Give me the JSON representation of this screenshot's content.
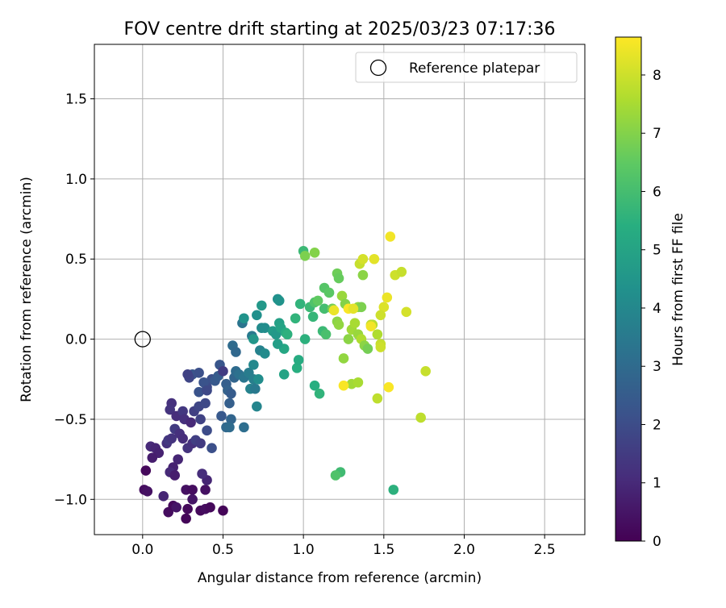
{
  "chart_data": {
    "type": "scatter",
    "title": "FOV centre drift starting at 2025/03/23 07:17:36",
    "xlabel": "Angular distance from reference (arcmin)",
    "ylabel": "Rotation from reference (arcmin)",
    "xlim": [
      -0.3,
      2.75
    ],
    "ylim": [
      -1.22,
      1.84
    ],
    "x_ticks": [
      0.0,
      0.5,
      1.0,
      1.5,
      2.0,
      2.5
    ],
    "x_tick_labels": [
      "0.0",
      "0.5",
      "1.0",
      "1.5",
      "2.0",
      "2.5"
    ],
    "y_ticks": [
      -1.0,
      -0.5,
      0.0,
      0.5,
      1.0,
      1.5
    ],
    "y_tick_labels": [
      "−1.0",
      "−0.5",
      "0.0",
      "0.5",
      "1.0",
      "1.5"
    ],
    "grid": true,
    "legend": {
      "position": "top-right",
      "entries": [
        {
          "label": "Reference platepar",
          "marker": "open-circle"
        }
      ]
    },
    "reference_point": {
      "x": 0.0,
      "y": 0.0
    },
    "colorbar": {
      "label": "Hours from first FF file",
      "colormap": "viridis",
      "range": [
        0,
        8.65
      ],
      "ticks": [
        0,
        1,
        2,
        3,
        4,
        5,
        6,
        7,
        8
      ],
      "tick_labels": [
        "0",
        "1",
        "2",
        "3",
        "4",
        "5",
        "6",
        "7",
        "8"
      ]
    },
    "series": [
      {
        "points": [
          [
            0.02,
            -0.82,
            0.2
          ],
          [
            0.01,
            -0.94,
            0.3
          ],
          [
            0.03,
            -0.95,
            0.4
          ],
          [
            0.16,
            -1.08,
            0.3
          ],
          [
            0.19,
            -1.04,
            0.2
          ],
          [
            0.21,
            -1.05,
            0.5
          ],
          [
            0.27,
            -0.94,
            0.4
          ],
          [
            0.31,
            -0.94,
            0.3
          ],
          [
            0.28,
            -1.06,
            0.2
          ],
          [
            0.27,
            -1.12,
            0.1
          ],
          [
            0.31,
            -1.0,
            0.5
          ],
          [
            0.36,
            -1.07,
            0.2
          ],
          [
            0.39,
            -1.06,
            0.3
          ],
          [
            0.42,
            -1.05,
            0.2
          ],
          [
            0.5,
            -1.07,
            0.1
          ],
          [
            0.39,
            -0.94,
            0.4
          ],
          [
            0.4,
            -0.88,
            0.9
          ],
          [
            0.37,
            -0.84,
            1.1
          ],
          [
            0.22,
            -0.75,
            0.9
          ],
          [
            0.19,
            -0.8,
            0.8
          ],
          [
            0.17,
            -0.83,
            1.0
          ],
          [
            0.2,
            -0.85,
            0.7
          ],
          [
            0.15,
            -0.65,
            1.2
          ],
          [
            0.05,
            -0.67,
            1.0
          ],
          [
            0.08,
            -0.68,
            0.9
          ],
          [
            0.1,
            -0.71,
            0.8
          ],
          [
            0.06,
            -0.74,
            0.7
          ],
          [
            0.13,
            -0.98,
            0.9
          ],
          [
            0.16,
            -0.63,
            1.4
          ],
          [
            0.18,
            -0.62,
            1.3
          ],
          [
            0.2,
            -0.56,
            1.5
          ],
          [
            0.23,
            -0.59,
            1.2
          ],
          [
            0.25,
            -0.62,
            1.1
          ],
          [
            0.28,
            -0.68,
            1.3
          ],
          [
            0.31,
            -0.65,
            1.2
          ],
          [
            0.33,
            -0.63,
            1.6
          ],
          [
            0.36,
            -0.65,
            1.5
          ],
          [
            0.4,
            -0.57,
            2.0
          ],
          [
            0.43,
            -0.68,
            2.1
          ],
          [
            0.18,
            -0.4,
            1.2
          ],
          [
            0.17,
            -0.44,
            1.3
          ],
          [
            0.21,
            -0.48,
            1.1
          ],
          [
            0.25,
            -0.45,
            1.4
          ],
          [
            0.26,
            -0.5,
            1.2
          ],
          [
            0.3,
            -0.52,
            1.0
          ],
          [
            0.32,
            -0.45,
            1.6
          ],
          [
            0.35,
            -0.42,
            1.8
          ],
          [
            0.36,
            -0.5,
            1.7
          ],
          [
            0.39,
            -0.4,
            1.9
          ],
          [
            0.43,
            -0.25,
            2.1
          ],
          [
            0.4,
            -0.3,
            2.0
          ],
          [
            0.35,
            -0.33,
            2.2
          ],
          [
            0.31,
            -0.22,
            2.3
          ],
          [
            0.29,
            -0.24,
            1.8
          ],
          [
            0.28,
            -0.22,
            1.7
          ],
          [
            0.35,
            -0.21,
            2.1
          ],
          [
            0.38,
            -0.27,
            2.2
          ],
          [
            0.4,
            -0.32,
            1.9
          ],
          [
            0.45,
            -0.26,
            2.4
          ],
          [
            0.47,
            -0.23,
            2.5
          ],
          [
            0.48,
            -0.16,
            2.3
          ],
          [
            0.5,
            -0.2,
            1.5
          ],
          [
            0.52,
            -0.28,
            2.6
          ],
          [
            0.53,
            -0.32,
            2.7
          ],
          [
            0.55,
            -0.34,
            2.5
          ],
          [
            0.54,
            -0.4,
            2.6
          ],
          [
            0.55,
            -0.5,
            2.8
          ],
          [
            0.49,
            -0.48,
            2.4
          ],
          [
            0.52,
            -0.55,
            2.9
          ],
          [
            0.54,
            -0.55,
            3.0
          ],
          [
            0.63,
            -0.55,
            3.1
          ],
          [
            0.57,
            -0.24,
            2.8
          ],
          [
            0.58,
            -0.2,
            3.0
          ],
          [
            0.6,
            -0.22,
            3.2
          ],
          [
            0.63,
            -0.24,
            3.4
          ],
          [
            0.66,
            -0.21,
            3.6
          ],
          [
            0.69,
            -0.25,
            3.7
          ],
          [
            0.67,
            -0.31,
            3.8
          ],
          [
            0.7,
            -0.31,
            3.5
          ],
          [
            0.71,
            -0.42,
            3.9
          ],
          [
            0.69,
            -0.16,
            4.0
          ],
          [
            0.73,
            -0.07,
            3.8
          ],
          [
            0.76,
            -0.09,
            4.1
          ],
          [
            0.72,
            -0.25,
            4.2
          ],
          [
            0.56,
            -0.04,
            3.0
          ],
          [
            0.58,
            -0.08,
            2.9
          ],
          [
            0.62,
            0.1,
            3.3
          ],
          [
            0.63,
            0.13,
            4.4
          ],
          [
            0.68,
            0.02,
            3.5
          ],
          [
            0.69,
            0.0,
            4.5
          ],
          [
            0.74,
            0.07,
            4.1
          ],
          [
            0.76,
            0.07,
            4.2
          ],
          [
            0.71,
            0.15,
            4.3
          ],
          [
            0.74,
            0.21,
            4.6
          ],
          [
            0.84,
            0.25,
            4.3
          ],
          [
            0.85,
            0.24,
            4.4
          ],
          [
            0.81,
            0.05,
            4.7
          ],
          [
            0.83,
            0.03,
            4.6
          ],
          [
            0.85,
            0.1,
            4.9
          ],
          [
            0.86,
            0.07,
            5.0
          ],
          [
            0.88,
            -0.06,
            5.1
          ],
          [
            0.89,
            0.04,
            5.3
          ],
          [
            0.84,
            -0.03,
            4.8
          ],
          [
            0.88,
            -0.22,
            5.0
          ],
          [
            0.9,
            0.03,
            5.5
          ],
          [
            0.95,
            0.13,
            5.6
          ],
          [
            0.96,
            -0.18,
            5.4
          ],
          [
            0.97,
            -0.13,
            5.3
          ],
          [
            0.98,
            0.22,
            5.6
          ],
          [
            1.01,
            0.0,
            5.5
          ],
          [
            1.04,
            0.2,
            5.8
          ],
          [
            1.06,
            0.14,
            5.7
          ],
          [
            1.07,
            -0.29,
            5.4
          ],
          [
            1.1,
            -0.34,
            5.6
          ],
          [
            1.12,
            0.05,
            5.8
          ],
          [
            1.13,
            0.19,
            6.0
          ],
          [
            1.14,
            0.03,
            6.1
          ],
          [
            1.07,
            0.23,
            6.2
          ],
          [
            1.0,
            0.55,
            5.8
          ],
          [
            1.09,
            0.24,
            6.5
          ],
          [
            1.13,
            0.32,
            6.3
          ],
          [
            1.16,
            0.29,
            6.4
          ],
          [
            1.21,
            0.41,
            6.7
          ],
          [
            1.22,
            0.38,
            6.6
          ],
          [
            1.01,
            0.52,
            6.9
          ],
          [
            1.07,
            0.54,
            7.0
          ],
          [
            1.18,
            0.19,
            6.8
          ],
          [
            1.21,
            0.11,
            7.1
          ],
          [
            1.22,
            0.09,
            7.2
          ],
          [
            1.24,
            0.27,
            7.3
          ],
          [
            1.26,
            0.22,
            7.0
          ],
          [
            1.28,
            0.0,
            7.1
          ],
          [
            1.3,
            0.06,
            7.4
          ],
          [
            1.32,
            0.1,
            7.5
          ],
          [
            1.34,
            0.2,
            7.2
          ],
          [
            1.36,
            0.2,
            6.9
          ],
          [
            1.34,
            0.03,
            7.3
          ],
          [
            1.36,
            0.0,
            7.6
          ],
          [
            1.38,
            -0.04,
            7.1
          ],
          [
            1.4,
            -0.06,
            6.8
          ],
          [
            1.42,
            0.09,
            7.8
          ],
          [
            1.43,
            0.09,
            7.7
          ],
          [
            1.46,
            0.03,
            7.6
          ],
          [
            1.48,
            -0.03,
            7.9
          ],
          [
            1.48,
            -0.05,
            8.0
          ],
          [
            1.3,
            -0.28,
            7.4
          ],
          [
            1.34,
            -0.27,
            7.5
          ],
          [
            1.25,
            -0.12,
            7.2
          ],
          [
            1.46,
            -0.37,
            7.8
          ],
          [
            1.37,
            0.4,
            7.1
          ],
          [
            1.35,
            0.47,
            7.9
          ],
          [
            1.37,
            0.5,
            8.1
          ],
          [
            1.44,
            0.5,
            8.3
          ],
          [
            1.5,
            0.2,
            8.2
          ],
          [
            1.52,
            0.26,
            8.4
          ],
          [
            1.48,
            0.15,
            8.0
          ],
          [
            1.54,
            0.64,
            8.5
          ],
          [
            1.57,
            0.4,
            8.0
          ],
          [
            1.61,
            0.42,
            7.9
          ],
          [
            1.64,
            0.17,
            8.1
          ],
          [
            1.76,
            -0.2,
            7.9
          ],
          [
            1.73,
            -0.49,
            7.8
          ],
          [
            1.53,
            -0.3,
            8.6
          ],
          [
            1.25,
            -0.29,
            8.6
          ],
          [
            1.19,
            0.18,
            8.4
          ],
          [
            1.28,
            0.19,
            8.6
          ],
          [
            1.31,
            0.19,
            8.3
          ],
          [
            1.42,
            0.08,
            8.5
          ],
          [
            1.23,
            -0.83,
            5.9
          ],
          [
            1.2,
            -0.85,
            6.2
          ],
          [
            1.56,
            -0.94,
            5.5
          ]
        ]
      }
    ]
  }
}
